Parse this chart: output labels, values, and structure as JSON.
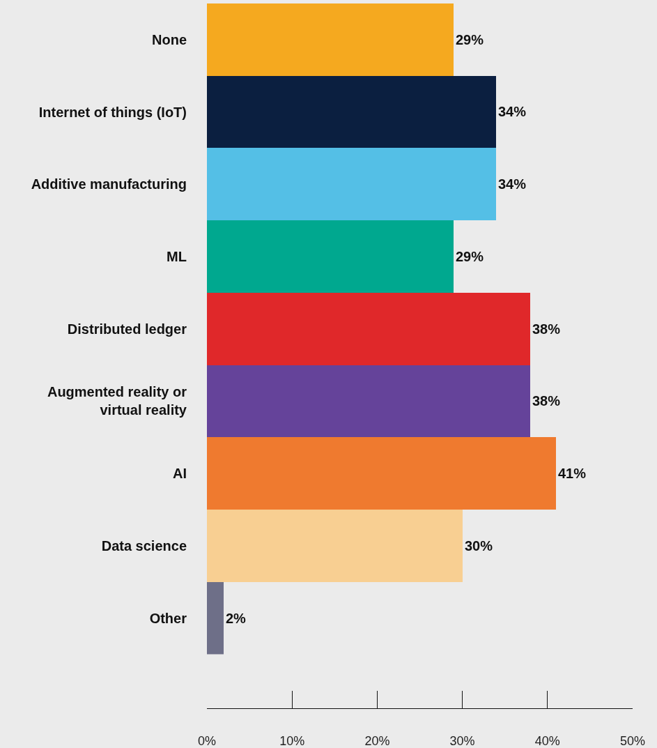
{
  "chart_data": {
    "type": "bar",
    "orientation": "horizontal",
    "categories": [
      "None",
      "Internet of things (IoT)",
      "Additive manufacturing",
      "ML",
      "Distributed ledger",
      "Augmented reality or virtual reality",
      "AI",
      "Data science",
      "Other"
    ],
    "values": [
      29,
      34,
      34,
      29,
      38,
      38,
      41,
      30,
      2
    ],
    "colors": [
      "#f5a91f",
      "#0b1f40",
      "#54bfe6",
      "#00a88f",
      "#e0282a",
      "#65439a",
      "#ef7a2f",
      "#f8cf92",
      "#6e6f88"
    ],
    "value_labels": [
      "29%",
      "34%",
      "34%",
      "29%",
      "38%",
      "38%",
      "41%",
      "30%",
      "2%"
    ],
    "xlim": [
      0,
      50
    ],
    "xticks": [
      {
        "value": 0,
        "label": "0%"
      },
      {
        "value": 10,
        "label": "10%"
      },
      {
        "value": 20,
        "label": "20%"
      },
      {
        "value": 30,
        "label": "30%"
      },
      {
        "value": 40,
        "label": "40%"
      },
      {
        "value": 50,
        "label": "50%"
      }
    ],
    "grid": false
  }
}
